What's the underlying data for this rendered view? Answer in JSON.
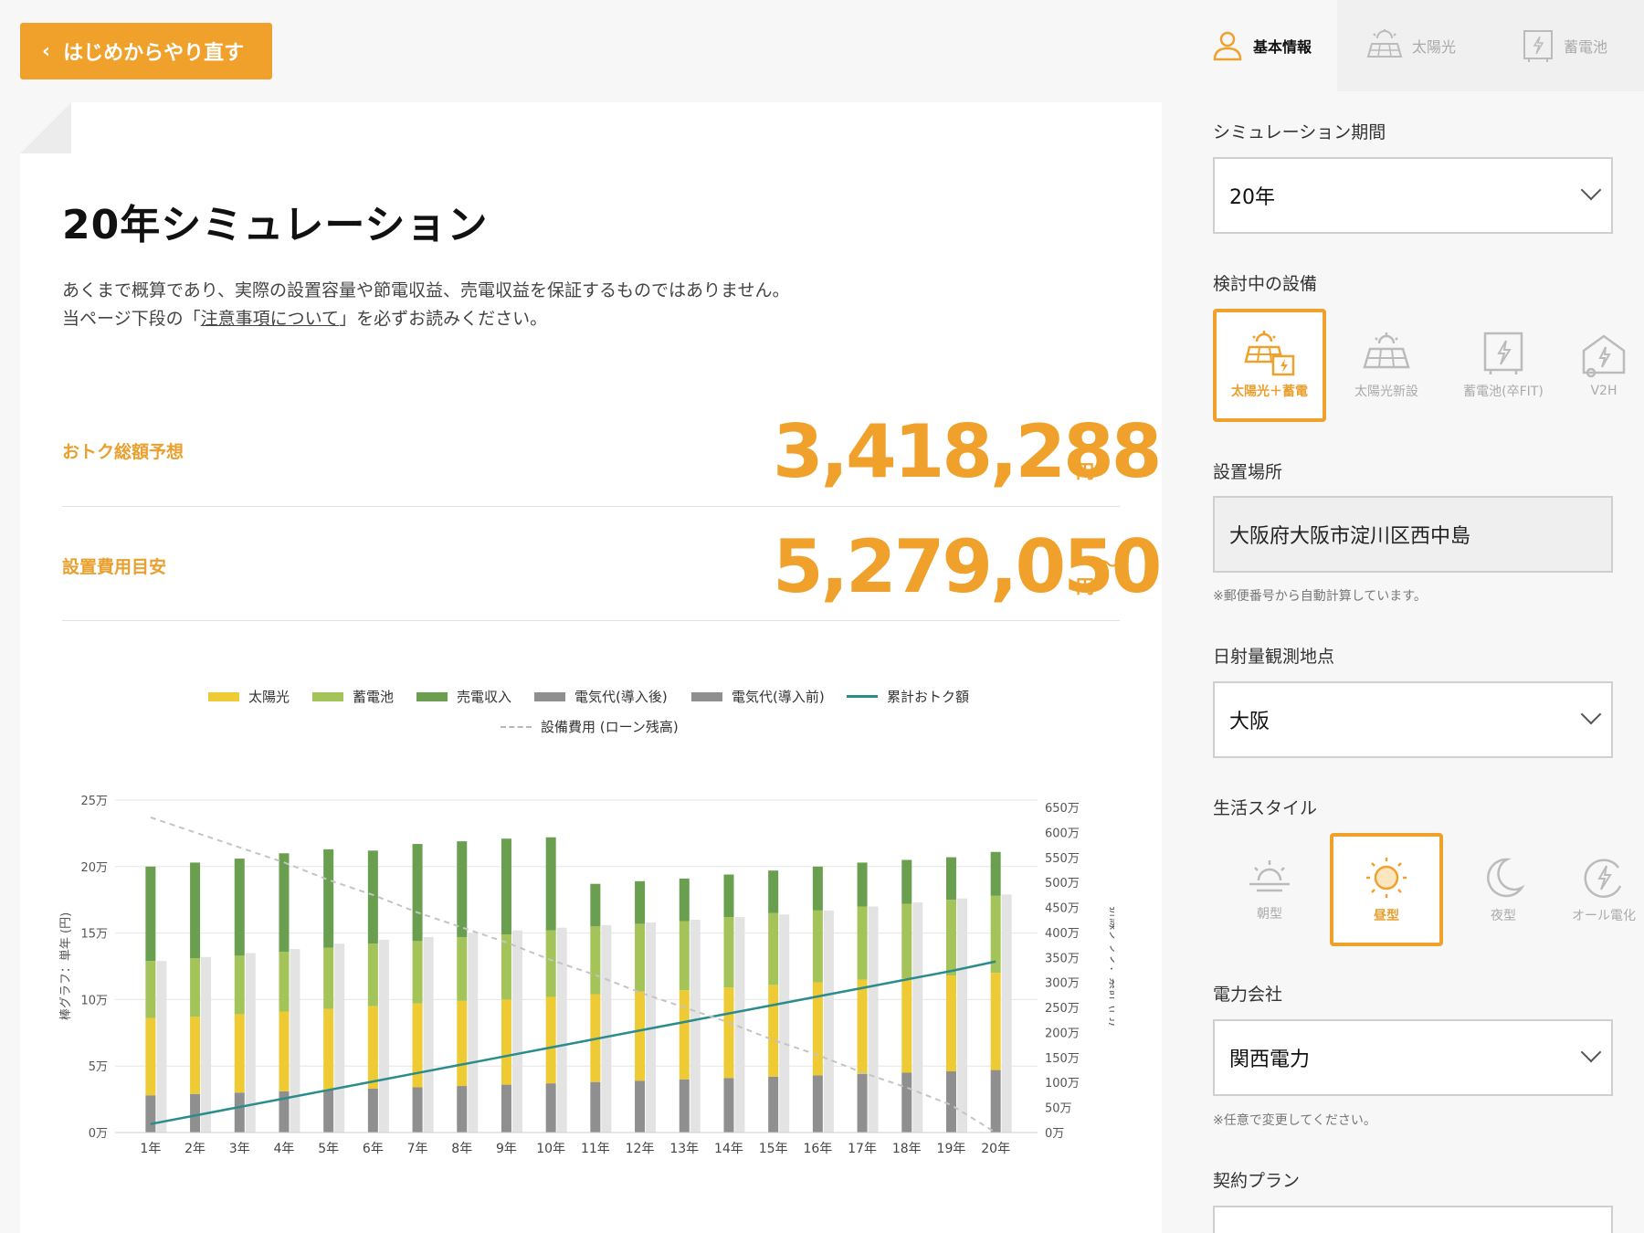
{
  "back_button": {
    "label": "はじめからやり直す"
  },
  "page": {
    "title": "20年シミュレーション",
    "note_line1": "あくまで概算であり、実際の設置容量や節電収益、売電収益を保証するものではありません。",
    "note_line2_pre": "当ページ下段の「",
    "note_line2_link": "注意事項について",
    "note_line2_post": "」を必ずお読みください。"
  },
  "stats": {
    "savings_label": "おトク総額予想",
    "savings_value": "3,418,288",
    "savings_unit": "円",
    "cost_label": "設置費用目安",
    "cost_value": "5,279,050",
    "cost_unit": "円",
    "cost_suffix": "〜"
  },
  "legend": {
    "solar": "太陽光",
    "battery": "蓄電池",
    "sales": "売電収入",
    "elec_after": "電気代(導入後)",
    "elec_before": "電気代(導入前)",
    "cumulative": "累計おトク額",
    "loan": "設備費用 (ローン残高)"
  },
  "colors": {
    "accent": "#f0a12b",
    "solar": "#eecb34",
    "battery": "#a4c45a",
    "sales": "#6a9f50",
    "elec_after": "#8f8f8f",
    "elec_before": "#e3e3e3",
    "cumulative": "#2b8c8c",
    "loan": "#c4c4c4"
  },
  "chart_data": {
    "type": "bar",
    "categories": [
      "1年",
      "2年",
      "3年",
      "4年",
      "5年",
      "6年",
      "7年",
      "8年",
      "9年",
      "10年",
      "11年",
      "12年",
      "13年",
      "14年",
      "15年",
      "16年",
      "17年",
      "18年",
      "19年",
      "20年"
    ],
    "y_left_label": "棒グラフ：単年 (円)",
    "y_right_label": "折線グラフ：累計 (円)",
    "y_left_ticks": [
      "0万",
      "5万",
      "10万",
      "15万",
      "20万",
      "25万"
    ],
    "y_left_range": [
      0,
      250000
    ],
    "y_right_ticks": [
      "0万",
      "50万",
      "100万",
      "150万",
      "200万",
      "250万",
      "300万",
      "350万",
      "400万",
      "450万",
      "500万",
      "550万",
      "600万",
      "650万"
    ],
    "y_right_range": [
      0,
      6500000
    ],
    "series": [
      {
        "name": "電気代(導入後)",
        "stack": "after",
        "values": [
          28000,
          29000,
          30000,
          31000,
          32000,
          33000,
          34000,
          35000,
          36000,
          37000,
          38000,
          39000,
          40000,
          41000,
          42000,
          43000,
          44000,
          45000,
          46000,
          47000
        ]
      },
      {
        "name": "太陽光",
        "stack": "after",
        "values": [
          58000,
          58000,
          59000,
          60000,
          61000,
          62000,
          63000,
          64000,
          64000,
          65000,
          66000,
          67000,
          67000,
          68000,
          69000,
          70000,
          71000,
          71000,
          72000,
          73000
        ]
      },
      {
        "name": "蓄電池",
        "stack": "after",
        "values": [
          43000,
          44000,
          44000,
          45000,
          46000,
          47000,
          47000,
          48000,
          49000,
          50000,
          51000,
          51000,
          52000,
          53000,
          54000,
          54000,
          55000,
          56000,
          57000,
          58000
        ]
      },
      {
        "name": "売電収入",
        "stack": "after",
        "values": [
          71000,
          72000,
          73000,
          74000,
          74000,
          70000,
          73000,
          72000,
          72000,
          70000,
          32000,
          32000,
          32000,
          32000,
          32000,
          33000,
          33000,
          33000,
          32000,
          33000
        ]
      },
      {
        "name": "電気代(導入前)",
        "stack": "before",
        "values": [
          129000,
          132000,
          135000,
          138000,
          142000,
          145000,
          147000,
          150000,
          152000,
          154000,
          156000,
          158000,
          160000,
          162000,
          164000,
          167000,
          170000,
          173000,
          176000,
          179000
        ]
      }
    ],
    "lines": [
      {
        "name": "累計おトク額",
        "axis": "right",
        "values": [
          170000,
          340000,
          510000,
          680000,
          850000,
          1020000,
          1190000,
          1360000,
          1530000,
          1700000,
          1870000,
          2040000,
          2210000,
          2380000,
          2550000,
          2720000,
          2890000,
          3060000,
          3230000,
          3418288
        ]
      },
      {
        "name": "設備費用 (ローン残高)",
        "axis": "right",
        "dashed": true,
        "values": [
          6300000,
          6000000,
          5700000,
          5400000,
          5050000,
          4750000,
          4400000,
          4100000,
          3800000,
          3450000,
          3150000,
          2800000,
          2500000,
          2200000,
          1850000,
          1550000,
          1200000,
          900000,
          550000,
          0
        ]
      }
    ]
  },
  "sidebar": {
    "tabs": [
      {
        "label": "基本情報",
        "icon": "person-icon",
        "active": true
      },
      {
        "label": "太陽光",
        "icon": "solar-panel-icon",
        "active": false
      },
      {
        "label": "蓄電池",
        "icon": "battery-icon",
        "active": false
      }
    ],
    "period_label": "シミュレーション期間",
    "period_value": "20年",
    "equipment_label": "検討中の設備",
    "equipment_options": [
      {
        "label": "太陽光＋蓄電",
        "icon": "solar-battery-icon",
        "selected": true
      },
      {
        "label": "太陽光新設",
        "icon": "solar-panel-icon",
        "selected": false
      },
      {
        "label": "蓄電池(卒FIT)",
        "icon": "battery-icon",
        "selected": false
      },
      {
        "label": "V2H",
        "icon": "car-charge-icon",
        "selected": false
      }
    ],
    "location_label": "設置場所",
    "location_value": "大阪府大阪市淀川区西中島",
    "location_note": "※郵便番号から自動計算しています。",
    "station_label": "日射量観測地点",
    "station_value": "大阪",
    "lifestyle_label": "生活スタイル",
    "lifestyle_options": [
      {
        "label": "朝型",
        "icon": "sunrise-icon",
        "selected": false
      },
      {
        "label": "昼型",
        "icon": "sun-icon",
        "selected": true
      },
      {
        "label": "夜型",
        "icon": "moon-icon",
        "selected": false
      },
      {
        "label": "オール電化",
        "icon": "all-electric-icon",
        "selected": false
      }
    ],
    "company_label": "電力会社",
    "company_value": "関西電力",
    "company_note": "※任意で変更してください。",
    "plan_label": "契約プラン"
  }
}
